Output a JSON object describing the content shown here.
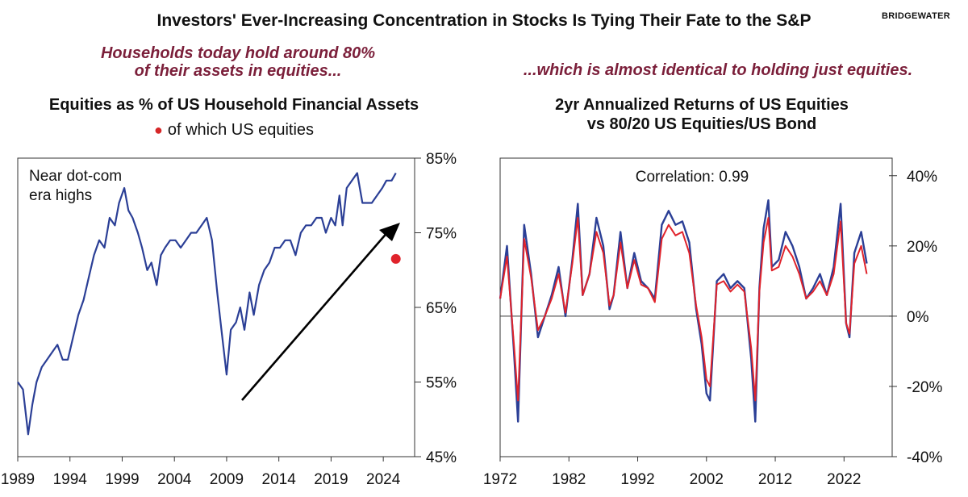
{
  "header": {
    "title": "Investors' Ever-Increasing Concentration in Stocks Is Tying Their Fate to the S&P",
    "brand": "BRIDGEWATER"
  },
  "callouts": {
    "left_line1": "Households today hold around 80%",
    "left_line2": "of their assets in equities...",
    "right": "...which is almost identical to holding just equities."
  },
  "colors": {
    "blue": "#2b3f96",
    "red": "#e0232b",
    "callout": "#7b1f3a"
  },
  "chart_data": [
    {
      "type": "line",
      "title": "Equities as % of US Household Financial Assets",
      "legend_label": "of which US equities",
      "annotation": "Near dot-com era highs",
      "annotation_line1": "Near dot-com",
      "annotation_line2": "era highs",
      "y_axis_side": "right",
      "ylim": [
        45,
        85
      ],
      "yticks": [
        45,
        55,
        65,
        75,
        85
      ],
      "ytick_labels": [
        "45%",
        "55%",
        "65%",
        "75%",
        "85%"
      ],
      "xlim": [
        1989,
        2027
      ],
      "xticks": [
        1989,
        1994,
        1999,
        2004,
        2009,
        2014,
        2019,
        2024
      ],
      "xtick_labels": [
        "1989",
        "1994",
        "1999",
        "2004",
        "2009",
        "2014",
        "2019",
        "2024"
      ],
      "series": [
        {
          "x": [
            1989,
            1989.5,
            1990,
            1990.4,
            1990.8,
            1991.3,
            1991.8,
            1992.3,
            1992.8,
            1993.3,
            1993.8,
            1994.3,
            1994.8,
            1995.3,
            1995.8,
            1996.3,
            1996.8,
            1997.3,
            1997.8,
            1998.3,
            1998.7,
            1999.2,
            1999.6,
            2000,
            2000.5,
            2000.9,
            2001.4,
            2001.8,
            2002.3,
            2002.7,
            2003.1,
            2003.6,
            2004.1,
            2004.6,
            2005.1,
            2005.6,
            2006.1,
            2006.6,
            2007.1,
            2007.6,
            2008.1,
            2008.5,
            2009,
            2009.4,
            2009.9,
            2010.3,
            2010.7,
            2011.2,
            2011.6,
            2012.1,
            2012.6,
            2013.1,
            2013.6,
            2014.1,
            2014.6,
            2015.1,
            2015.6,
            2016.1,
            2016.6,
            2017.1,
            2017.6,
            2018.1,
            2018.5,
            2019,
            2019.4,
            2019.8,
            2020.1,
            2020.5,
            2021,
            2021.5,
            2022,
            2022.4,
            2022.9,
            2023.4,
            2023.9,
            2024.3,
            2024.8,
            2025.2
          ],
          "values": [
            55,
            54,
            48,
            52,
            55,
            57,
            58,
            59,
            60,
            58,
            58,
            61,
            64,
            66,
            69,
            72,
            74,
            73,
            77,
            76,
            79,
            81,
            78,
            77,
            75,
            73,
            70,
            71,
            68,
            72,
            73,
            74,
            74,
            73,
            74,
            75,
            75,
            76,
            77,
            74,
            67,
            62,
            56,
            62,
            63,
            65,
            62,
            67,
            64,
            68,
            70,
            71,
            73,
            73,
            74,
            74,
            72,
            75,
            76,
            76,
            77,
            77,
            75,
            77,
            76,
            80,
            76,
            81,
            82,
            83,
            79,
            79,
            79,
            80,
            81,
            82,
            82,
            83
          ]
        }
      ],
      "point": {
        "x": 2025.2,
        "value": 71.5
      }
    },
    {
      "type": "line",
      "title": "2yr Annualized Returns of US Equities vs 80/20 US Equities/US Bond",
      "title_line1": "2yr Annualized Returns of US Equities",
      "title_line2": "vs 80/20 US Equities/US Bond",
      "annotation": "Correlation: 0.99",
      "y_axis_side": "right",
      "ylim": [
        -40,
        45
      ],
      "yticks": [
        -40,
        -20,
        0,
        20,
        40
      ],
      "ytick_labels": [
        "-40%",
        "-20%",
        "0%",
        "20%",
        "40%"
      ],
      "xlim": [
        1972,
        2029
      ],
      "xticks": [
        1972,
        1982,
        1992,
        2002,
        2012,
        2022
      ],
      "xtick_labels": [
        "1972",
        "1982",
        "1992",
        "2002",
        "2012",
        "2022"
      ],
      "series": [
        {
          "name": "US Equities",
          "x": [
            1972,
            1973,
            1974,
            1974.6,
            1975.5,
            1976.5,
            1977.5,
            1978.5,
            1979.5,
            1980.5,
            1981.5,
            1982.5,
            1983.3,
            1984,
            1985,
            1986,
            1987,
            1987.9,
            1988.5,
            1989.5,
            1990.5,
            1991.5,
            1992.5,
            1993.5,
            1994.5,
            1995.5,
            1996.5,
            1997.5,
            1998.5,
            1999.5,
            2000.5,
            2001.3,
            2002,
            2002.5,
            2003.5,
            2004.5,
            2005.5,
            2006.5,
            2007.5,
            2008.5,
            2009.1,
            2009.7,
            2010.3,
            2011,
            2011.5,
            2012.5,
            2013.5,
            2014.5,
            2015.5,
            2016.5,
            2017.5,
            2018.5,
            2019.5,
            2020.5,
            2021.5,
            2022.3,
            2022.8,
            2023.5,
            2024.5,
            2025.3
          ],
          "values": [
            5,
            20,
            -10,
            -30,
            26,
            12,
            -6,
            0,
            6,
            14,
            0,
            16,
            32,
            6,
            12,
            28,
            20,
            2,
            6,
            24,
            8,
            18,
            10,
            8,
            5,
            26,
            30,
            26,
            27,
            21,
            2,
            -8,
            -22,
            -24,
            10,
            12,
            8,
            10,
            8,
            -12,
            -30,
            8,
            25,
            33,
            14,
            16,
            24,
            20,
            14,
            5,
            8,
            12,
            6,
            14,
            32,
            -2,
            -6,
            18,
            24,
            15
          ]
        },
        {
          "name": "80/20 US Equities/US Bond",
          "x": [
            1972,
            1973,
            1974,
            1974.6,
            1975.5,
            1976.5,
            1977.5,
            1978.5,
            1979.5,
            1980.5,
            1981.5,
            1982.5,
            1983.3,
            1984,
            1985,
            1986,
            1987,
            1987.9,
            1988.5,
            1989.5,
            1990.5,
            1991.5,
            1992.5,
            1993.5,
            1994.5,
            1995.5,
            1996.5,
            1997.5,
            1998.5,
            1999.5,
            2000.5,
            2001.3,
            2002,
            2002.5,
            2003.5,
            2004.5,
            2005.5,
            2006.5,
            2007.5,
            2008.5,
            2009.1,
            2009.7,
            2010.3,
            2011,
            2011.5,
            2012.5,
            2013.5,
            2014.5,
            2015.5,
            2016.5,
            2017.5,
            2018.5,
            2019.5,
            2020.5,
            2021.5,
            2022.3,
            2022.8,
            2023.5,
            2024.5,
            2025.3
          ],
          "values": [
            5,
            17,
            -8,
            -24,
            22,
            11,
            -4,
            0,
            5,
            12,
            1,
            15,
            28,
            6,
            12,
            24,
            18,
            3,
            6,
            21,
            8,
            16,
            9,
            8,
            4,
            22,
            26,
            23,
            24,
            18,
            3,
            -6,
            -18,
            -20,
            9,
            10,
            7,
            9,
            7,
            -9,
            -24,
            7,
            21,
            28,
            13,
            14,
            20,
            17,
            12,
            5,
            7,
            10,
            6,
            12,
            27,
            -2,
            -5,
            15,
            20,
            12
          ]
        }
      ]
    }
  ]
}
